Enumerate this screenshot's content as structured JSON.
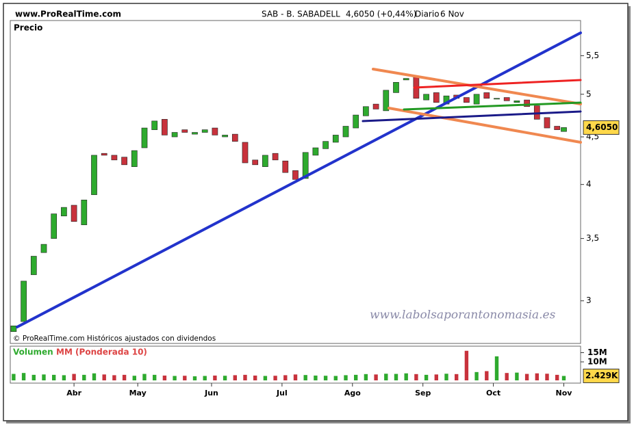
{
  "chart_data": {
    "type": "candlestick",
    "site": "www.ProRealTime.com",
    "title": "SAB - B. SABADELL",
    "quote": "4,6050 (+0,44%)",
    "period": "Diario",
    "date": "6 Nov",
    "panel_label": "Precio",
    "copyright": "© ProRealTime.com Históricos ajustados con dividendos",
    "watermark": "www.labolsaporantonomasia.es",
    "log_scale": true,
    "up_color": "#2eaa2e",
    "down_color": "#c8323c",
    "x": [
      0,
      3,
      6,
      9,
      12,
      15,
      18,
      21,
      24,
      27,
      30,
      33,
      36,
      39,
      42,
      45,
      48,
      51,
      54,
      57,
      60,
      63,
      66,
      69,
      72,
      75,
      78,
      81,
      84,
      87,
      90,
      93,
      96,
      99,
      102,
      105,
      108,
      111,
      114,
      117,
      120,
      123,
      126,
      129,
      132,
      135,
      138,
      141,
      144,
      147,
      150,
      153,
      156,
      159,
      162,
      164
    ],
    "open": [
      2.78,
      2.85,
      3.2,
      3.38,
      3.5,
      3.7,
      3.8,
      3.62,
      3.9,
      4.32,
      4.3,
      4.28,
      4.18,
      4.38,
      4.58,
      4.7,
      4.5,
      4.58,
      4.53,
      4.55,
      4.6,
      4.5,
      4.53,
      4.44,
      4.25,
      4.18,
      4.32,
      4.24,
      4.14,
      4.06,
      4.3,
      4.37,
      4.44,
      4.5,
      4.6,
      4.74,
      4.88,
      4.8,
      5.02,
      5.18,
      5.22,
      4.93,
      5.02,
      4.88,
      4.99,
      4.96,
      4.88,
      5.02,
      4.94,
      4.96,
      4.9,
      4.93,
      4.86,
      4.72,
      4.62,
      4.56
    ],
    "close": [
      2.82,
      3.15,
      3.35,
      3.45,
      3.72,
      3.78,
      3.65,
      3.85,
      4.3,
      4.3,
      4.25,
      4.2,
      4.35,
      4.6,
      4.68,
      4.52,
      4.55,
      4.55,
      4.55,
      4.58,
      4.52,
      4.52,
      4.45,
      4.22,
      4.2,
      4.3,
      4.25,
      4.12,
      4.05,
      4.33,
      4.38,
      4.45,
      4.52,
      4.62,
      4.75,
      4.85,
      4.82,
      5.05,
      5.15,
      5.2,
      4.95,
      5.0,
      4.9,
      4.98,
      4.95,
      4.9,
      5.0,
      4.95,
      4.95,
      4.92,
      4.92,
      4.85,
      4.7,
      4.6,
      4.58,
      4.605
    ],
    "xlim": [
      -1,
      169
    ],
    "xticks": [
      {
        "value": 18,
        "label": "Abr"
      },
      {
        "value": 37,
        "label": "May"
      },
      {
        "value": 59,
        "label": "Jun"
      },
      {
        "value": 80,
        "label": "Jul"
      },
      {
        "value": 101,
        "label": "Ago"
      },
      {
        "value": 122,
        "label": "Sep"
      },
      {
        "value": 143,
        "label": "Oct"
      },
      {
        "value": 164,
        "label": "Nov"
      }
    ],
    "ylim": [
      2.7,
      6.0
    ],
    "yticks": [
      3,
      {
        "value": 3.5,
        "label": "3,5"
      },
      4,
      {
        "value": 4.5,
        "label": "4,5"
      },
      5,
      {
        "value": 5.5,
        "label": "5,5"
      }
    ],
    "last_price": {
      "value": 4.605,
      "label": "4,6050"
    },
    "volume": {
      "name": "Volumen",
      "ma_name": "MM (Ponderada 10)",
      "values": [
        3.5,
        4,
        3,
        3.2,
        3,
        2.8,
        3.5,
        3,
        3.8,
        3.2,
        2.8,
        3,
        2.5,
        3.5,
        3,
        2.6,
        2.4,
        2.5,
        2.2,
        2.4,
        2.6,
        2.5,
        2.8,
        3,
        2.6,
        2.4,
        2.5,
        2.8,
        3.2,
        2.9,
        2.6,
        2.5,
        2.4,
        2.8,
        3,
        3.4,
        3.2,
        3.6,
        3.5,
        3.8,
        3.4,
        3,
        3.2,
        3.6,
        3.4,
        16,
        4.5,
        5,
        13,
        4,
        4.2,
        3.5,
        3.8,
        3.6,
        3,
        2.4
      ],
      "ylim": [
        0,
        18.5
      ],
      "yticks": [
        {
          "value": 10,
          "label": "10M"
        },
        {
          "value": 15,
          "label": "15M"
        }
      ],
      "last": {
        "value": 2.429,
        "label": "2.429K"
      }
    }
  }
}
